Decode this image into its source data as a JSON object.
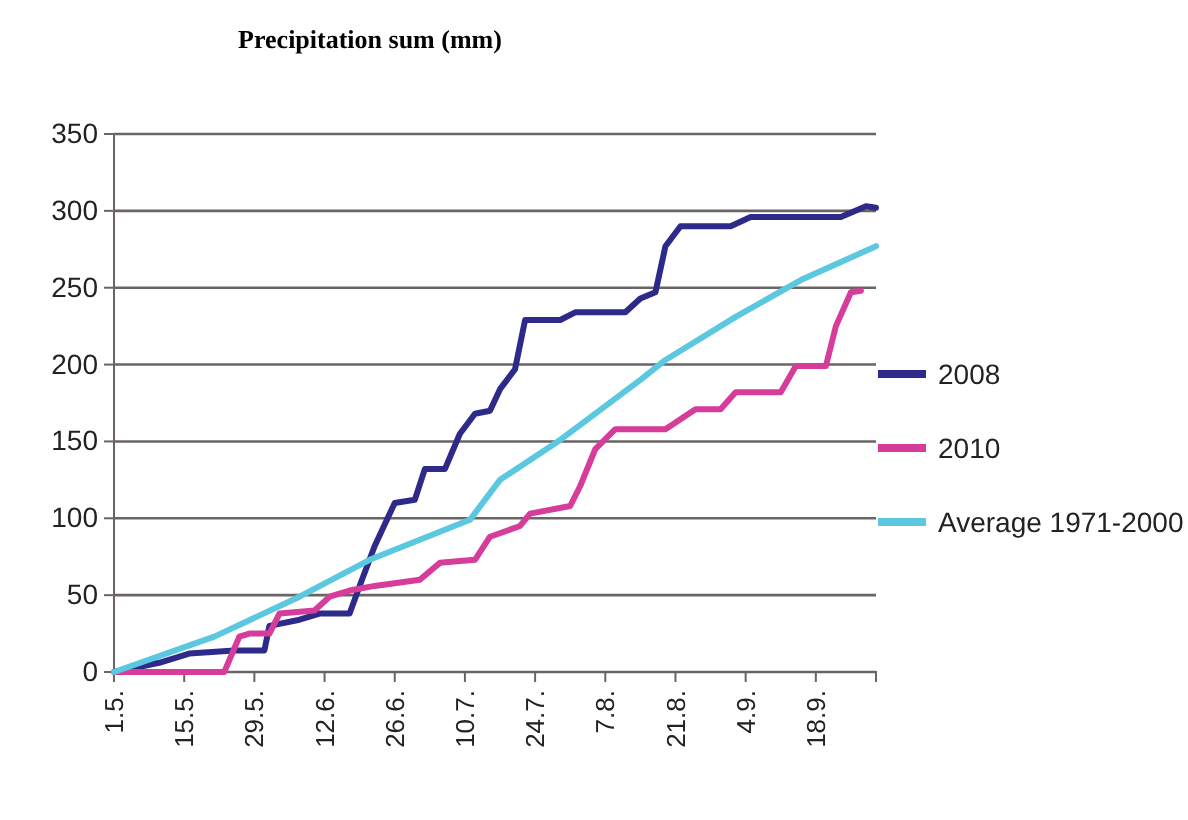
{
  "chart_data": {
    "type": "line",
    "title": "Precipitation sum (mm)",
    "xlim": [
      "--05-01",
      "--09-30"
    ],
    "xticks": [
      {
        "value": "--05-01",
        "label": "1.5."
      },
      {
        "value": "--05-15",
        "label": "15.5."
      },
      {
        "value": "--05-29",
        "label": "29.5."
      },
      {
        "value": "--06-12",
        "label": "12.6."
      },
      {
        "value": "--06-26",
        "label": "26.6."
      },
      {
        "value": "--07-10",
        "label": "10.7."
      },
      {
        "value": "--07-24",
        "label": "24.7."
      },
      {
        "value": "--08-07",
        "label": "7.8."
      },
      {
        "value": "--08-21",
        "label": "21.8."
      },
      {
        "value": "--09-04",
        "label": "4.9."
      },
      {
        "value": "--09-18",
        "label": "18.9."
      }
    ],
    "ylim": [
      0,
      350
    ],
    "yticks": [
      0,
      50,
      100,
      150,
      200,
      250,
      300,
      350
    ],
    "grid": "y",
    "legend": "right",
    "series": [
      {
        "name": "2008",
        "color": "#2e2a8a",
        "x": [
          "--05-01",
          "--05-10",
          "--05-16",
          "--05-25",
          "--05-31",
          "--06-01",
          "--06-07",
          "--06-11",
          "--06-17",
          "--06-19",
          "--06-22",
          "--06-26",
          "--06-30",
          "--07-02",
          "--07-06",
          "--07-09",
          "--07-12",
          "--07-15",
          "--07-17",
          "--07-20",
          "--07-22",
          "--07-29",
          "--08-01",
          "--08-11",
          "--08-14",
          "--08-17",
          "--08-19",
          "--08-22",
          "--09-01",
          "--09-05",
          "--09-23",
          "--09-28",
          "--09-30"
        ],
        "values": [
          0,
          6,
          12,
          14,
          14,
          30,
          34,
          38,
          38,
          56,
          82,
          110,
          112,
          132,
          132,
          155,
          168,
          170,
          184,
          197,
          229,
          229,
          234,
          234,
          243,
          247,
          277,
          290,
          290,
          296,
          296,
          303,
          302
        ]
      },
      {
        "name": "2010",
        "color": "#d63c9a",
        "x": [
          "--05-01",
          "--05-23",
          "--05-26",
          "--05-28",
          "--06-01",
          "--06-03",
          "--06-10",
          "--06-13",
          "--06-17",
          "--06-22",
          "--07-01",
          "--07-05",
          "--07-12",
          "--07-15",
          "--07-21",
          "--07-23",
          "--07-31",
          "--08-02",
          "--08-05",
          "--08-09",
          "--08-19",
          "--08-25",
          "--08-30",
          "--09-02",
          "--09-11",
          "--09-14",
          "--09-20",
          "--09-22",
          "--09-25",
          "--09-27"
        ],
        "values": [
          0,
          0,
          23,
          25,
          25,
          38,
          40,
          49,
          53,
          56,
          60,
          71,
          73,
          88,
          95,
          103,
          108,
          121,
          145,
          158,
          158,
          171,
          171,
          182,
          182,
          199,
          199,
          225,
          247,
          248
        ]
      },
      {
        "name": "Average 1971-2000",
        "color": "#5bc8e0",
        "x": [
          "--05-01",
          "--05-21",
          "--06-07",
          "--06-21",
          "--07-11",
          "--07-17",
          "--07-29",
          "--08-14",
          "--08-19",
          "--09-02",
          "--09-15",
          "--09-30"
        ],
        "values": [
          0,
          23,
          49,
          73,
          99,
          125,
          151,
          190,
          203,
          231,
          255,
          277
        ]
      }
    ]
  }
}
